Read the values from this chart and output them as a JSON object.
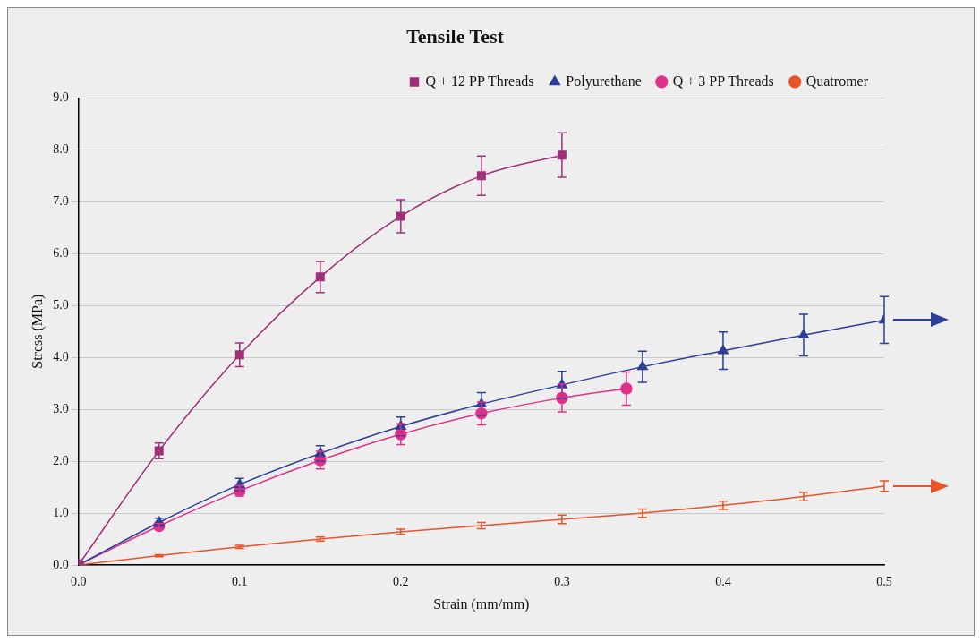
{
  "chart_data": {
    "type": "line",
    "title": "Tensile Test",
    "xlabel": "Strain (mm/mm)",
    "ylabel": "Stress (MPa)",
    "xlim": [
      0,
      0.5
    ],
    "ylim": [
      0,
      9
    ],
    "xticks": [
      {
        "value": 0,
        "label": "0.0"
      },
      {
        "value": 0.1,
        "label": "0.1"
      },
      {
        "value": 0.2,
        "label": "0.2"
      },
      {
        "value": 0.3,
        "label": "0.3"
      },
      {
        "value": 0.4,
        "label": "0.4"
      },
      {
        "value": 0.5,
        "label": "0.5"
      }
    ],
    "yticks": [
      {
        "value": 0,
        "label": "0.0"
      },
      {
        "value": 1,
        "label": "1.0"
      },
      {
        "value": 2,
        "label": "2.0"
      },
      {
        "value": 3,
        "label": "3.0"
      },
      {
        "value": 4,
        "label": "4.0"
      },
      {
        "value": 5,
        "label": "5.0"
      },
      {
        "value": 6,
        "label": "6.0"
      },
      {
        "value": 7,
        "label": "7.0"
      },
      {
        "value": 8,
        "label": "8.0"
      },
      {
        "value": 9,
        "label": "9.0"
      }
    ],
    "grid": "y",
    "legend": "top right",
    "series": [
      {
        "name": "Q + 12 PP Threads",
        "color": "#a0307a",
        "marker": "square",
        "x": [
          0,
          0.05,
          0.1,
          0.15,
          0.2,
          0.25,
          0.3
        ],
        "values": [
          0,
          2.2,
          4.05,
          5.55,
          6.72,
          7.5,
          7.9
        ],
        "errors": [
          null,
          0.15,
          0.23,
          0.3,
          0.32,
          0.38,
          0.43
        ]
      },
      {
        "name": "Polyurethane",
        "color": "#2b3f96",
        "marker": "triangle",
        "x": [
          0,
          0.05,
          0.1,
          0.15,
          0.2,
          0.25,
          0.3,
          0.35,
          0.4,
          0.45,
          0.5
        ],
        "values": [
          0,
          0.82,
          1.55,
          2.15,
          2.67,
          3.1,
          3.47,
          3.82,
          4.13,
          4.43,
          4.72
        ],
        "errors": [
          null,
          0.08,
          0.12,
          0.15,
          0.18,
          0.22,
          0.26,
          0.3,
          0.36,
          0.4,
          0.45
        ]
      },
      {
        "name": "Q + 3 PP Threads",
        "color": "#e0318a",
        "marker": "circle",
        "x": [
          0,
          0.05,
          0.1,
          0.15,
          0.2,
          0.25,
          0.3,
          0.34
        ],
        "values": [
          0,
          0.75,
          1.43,
          2.02,
          2.52,
          2.92,
          3.22,
          3.4
        ],
        "errors": [
          null,
          0.05,
          0.1,
          0.17,
          0.2,
          0.22,
          0.27,
          0.32
        ]
      },
      {
        "name": "Quatromer",
        "color": "#e8532a",
        "x": [
          0,
          0.05,
          0.1,
          0.15,
          0.2,
          0.25,
          0.3,
          0.35,
          0.4,
          0.45,
          0.5
        ],
        "values": [
          0,
          0.18,
          0.35,
          0.5,
          0.64,
          0.76,
          0.88,
          1.0,
          1.15,
          1.32,
          1.52
        ],
        "errors": [
          null,
          0.02,
          0.03,
          0.04,
          0.05,
          0.06,
          0.08,
          0.08,
          0.08,
          0.08,
          0.1
        ]
      }
    ]
  }
}
